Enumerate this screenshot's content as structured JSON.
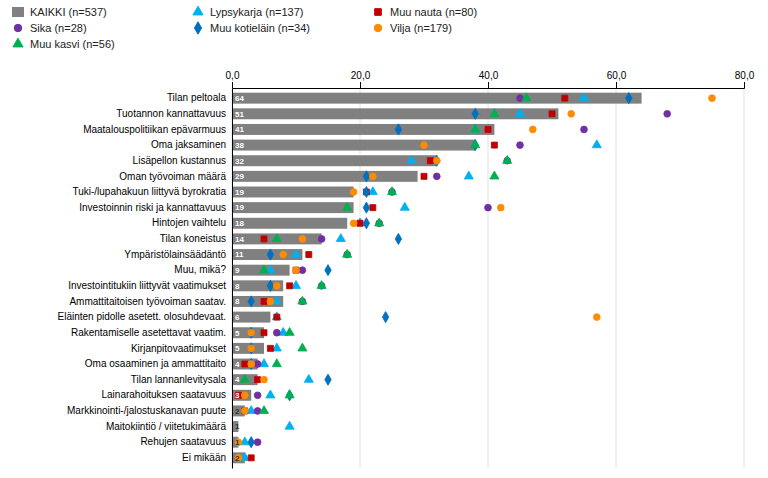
{
  "chart_data": {
    "type": "bar",
    "orientation": "horizontal",
    "grid": true,
    "legend": "top",
    "data_labels": true,
    "categories": [
      "Tilan peltoala",
      "Tuotannon kannattavuus",
      "Maatalouspolitiikan epävarmuus",
      "Oma jaksaminen",
      "Lisäpellon kustannus",
      "Oman työvoiman määrä",
      "Tuki-/lupahakuun liittyvä byrokratia",
      "Investoinnin riski ja kannattavuus",
      "Hintojen vaihtelu",
      "Tilan koneistus",
      "Ympäristölainsäädäntö",
      "Muu, mikä?",
      "Investointitukiin liittyvät vaatimukset",
      "Ammattitaitoisen työvoiman saatav.",
      "Eläinten pidolle asetett. olosuhdevaat.",
      "Rakentamiselle asetettavat vaatim.",
      "Kirjanpitovaatimukset",
      "Oma osaaminen ja ammattitaito",
      "Tilan lannanlevitysala",
      "Lainarahoituksen saatavuus",
      "Markkinointi-/jalostuskanavan puute",
      "Maitokiintiö / viitetukimäärä",
      "Rehujen saatavuus",
      "Ei mikään"
    ],
    "xlim": [
      0,
      80
    ],
    "xticks": [
      {
        "value": 0,
        "label": "0,0"
      },
      {
        "value": 20,
        "label": "20,0"
      },
      {
        "value": 40,
        "label": "40,0"
      },
      {
        "value": 60,
        "label": "60,0"
      },
      {
        "value": 80,
        "label": "80,0"
      }
    ],
    "series": [
      {
        "name": "KAIKKI (n=537)",
        "type": "bar",
        "color": "#808080",
        "values": [
          64,
          51,
          41,
          38,
          32,
          29,
          19,
          19,
          18,
          14,
          11,
          9,
          8,
          8,
          6,
          5,
          5,
          4,
          4,
          3,
          2,
          1,
          1,
          2
        ]
      },
      {
        "name": "Lypsykarja (n=137)",
        "type": "scatter",
        "marker": "triangle",
        "color": "#00b0f0",
        "values": [
          55,
          45,
          38,
          57,
          28,
          37,
          22,
          27,
          20,
          17,
          10,
          6,
          10,
          7,
          7,
          8,
          7,
          5,
          12,
          6,
          3,
          9,
          2,
          2
        ]
      },
      {
        "name": "Muu nauta (n=80)",
        "type": "scatter",
        "marker": "square",
        "color": "#c00000",
        "values": [
          52,
          50,
          40,
          41,
          31,
          30,
          21,
          22,
          20,
          5,
          12,
          10,
          9,
          5,
          7,
          5,
          6,
          2,
          4,
          1,
          2,
          null,
          null,
          3
        ]
      },
      {
        "name": "Sika (n=28)",
        "type": "scatter",
        "marker": "circle",
        "color": "#7030a0",
        "values": [
          45,
          68,
          55,
          45,
          43,
          32,
          25,
          40,
          23,
          14,
          18,
          11,
          14,
          11,
          null,
          7,
          null,
          4,
          null,
          4,
          4,
          null,
          4,
          null
        ]
      },
      {
        "name": "Muu kotieläin (n=34)",
        "type": "scatter",
        "marker": "diamond",
        "color": "#0070c0",
        "values": [
          62,
          38,
          26,
          38,
          32,
          21,
          21,
          21,
          21,
          26,
          6,
          15,
          6,
          3,
          24,
          3,
          3,
          3,
          15,
          9,
          null,
          null,
          3,
          null
        ]
      },
      {
        "name": "Vilja (n=179)",
        "type": "scatter",
        "marker": "circle",
        "color": "#ff8c00",
        "values": [
          75,
          53,
          47,
          30,
          32,
          22,
          19,
          42,
          19,
          11,
          8,
          10,
          7,
          6,
          57,
          3,
          3,
          3,
          5,
          2,
          2,
          null,
          1,
          1
        ]
      },
      {
        "name": "Muu kasvi (n=56)",
        "type": "scatter",
        "marker": "triangle",
        "color": "#00b050",
        "values": [
          46,
          41,
          38,
          38,
          43,
          41,
          25,
          18,
          23,
          7,
          18,
          5,
          14,
          11,
          null,
          9,
          11,
          7,
          2,
          9,
          5,
          null,
          null,
          null
        ]
      }
    ]
  }
}
